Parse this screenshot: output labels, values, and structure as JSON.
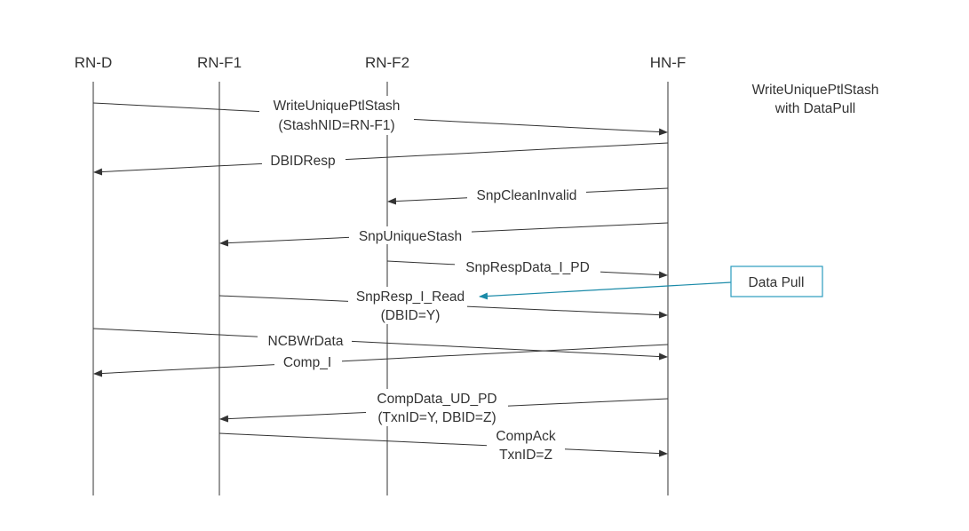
{
  "lanes": [
    {
      "id": "rnd",
      "label": "RN-D"
    },
    {
      "id": "rnf1",
      "label": "RN-F1"
    },
    {
      "id": "rnf2",
      "label": "RN-F2"
    },
    {
      "id": "hnf",
      "label": "HN-F"
    }
  ],
  "note": {
    "line1": "WriteUniquePtlStash",
    "line2": "with DataPull"
  },
  "messages": [
    {
      "from": "rnd",
      "to": "hnf",
      "lines": [
        "WriteUniquePtlStash",
        "(StashNID=RN-F1)"
      ]
    },
    {
      "from": "hnf",
      "to": "rnd",
      "lines": [
        "DBIDResp"
      ]
    },
    {
      "from": "hnf",
      "to": "rnf2",
      "lines": [
        "SnpCleanInvalid"
      ]
    },
    {
      "from": "hnf",
      "to": "rnf1",
      "lines": [
        "SnpUniqueStash"
      ]
    },
    {
      "from": "rnf2",
      "to": "hnf",
      "lines": [
        "SnpRespData_I_PD"
      ]
    },
    {
      "from": "rnf1",
      "to": "hnf",
      "lines": [
        "SnpResp_I_Read",
        "(DBID=Y)"
      ]
    },
    {
      "from": "rnd",
      "to": "hnf",
      "lines": [
        "NCBWrData"
      ]
    },
    {
      "from": "hnf",
      "to": "rnd",
      "lines": [
        "Comp_I"
      ]
    },
    {
      "from": "hnf",
      "to": "rnf1",
      "lines": [
        "CompData_UD_PD",
        "(TxnID=Y, DBID=Z)"
      ]
    },
    {
      "from": "rnf1",
      "to": "hnf",
      "lines": [
        "CompAck",
        "TxnID=Z"
      ]
    }
  ],
  "callout": {
    "label": "Data Pull",
    "points_to": "SnpResp_I_Read",
    "color": "#2a9bbd"
  }
}
